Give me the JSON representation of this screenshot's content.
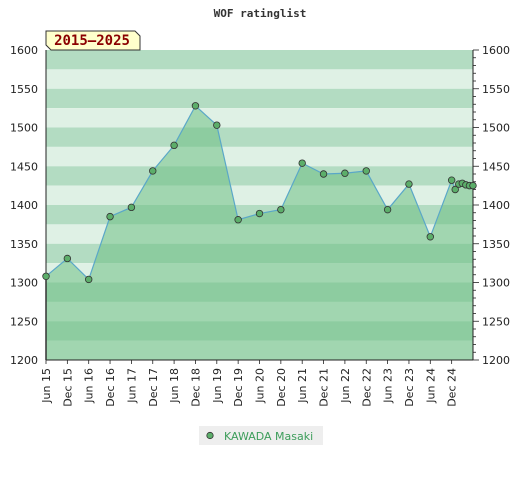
{
  "chart_data": {
    "type": "area",
    "title": "WOF ratinglist",
    "badge": "2015–2025",
    "ylim": [
      1200,
      1600
    ],
    "yticks": [
      1200,
      1250,
      1300,
      1350,
      1400,
      1450,
      1500,
      1550,
      1600
    ],
    "grid": true,
    "legend_position": "bottom-center",
    "colors": {
      "line": "#5aa7c8",
      "marker": "#5cae6a",
      "fill": "#6dbf85",
      "band_dark": "#b3dcc2",
      "band_light": "#dff1e5",
      "badge_bg": "#ffffcc"
    },
    "xtick_labels": [
      "Jun 15",
      "Dec 15",
      "Jun 16",
      "Dec 16",
      "Jun 17",
      "Dec 17",
      "Jun 18",
      "Dec 18",
      "Jun 19",
      "Dec 19",
      "Jun 20",
      "Dec 20",
      "Jun 21",
      "Dec 21",
      "Jun 22",
      "Dec 22",
      "Jun 23",
      "Dec 23",
      "Jun 24",
      "Dec 24"
    ],
    "series": [
      {
        "name": "KAWADA Masaki",
        "points": [
          {
            "x": "Jun 15",
            "y": 1308
          },
          {
            "x": "Dec 15",
            "y": 1331
          },
          {
            "x": "Jun 16",
            "y": 1304
          },
          {
            "x": "Dec 16",
            "y": 1385
          },
          {
            "x": "Jun 17",
            "y": 1397
          },
          {
            "x": "Dec 17",
            "y": 1444
          },
          {
            "x": "Jun 18",
            "y": 1477
          },
          {
            "x": "Dec 18",
            "y": 1528
          },
          {
            "x": "Jun 19",
            "y": 1503
          },
          {
            "x": "Dec 19",
            "y": 1381
          },
          {
            "x": "Jun 20",
            "y": 1389
          },
          {
            "x": "Dec 20",
            "y": 1394
          },
          {
            "x": "Jun 21",
            "y": 1454
          },
          {
            "x": "Dec 21",
            "y": 1440
          },
          {
            "x": "Jun 22",
            "y": 1441
          },
          {
            "x": "Dec 22",
            "y": 1444
          },
          {
            "x": "Jun 23",
            "y": 1394
          },
          {
            "x": "Dec 23",
            "y": 1427
          },
          {
            "x": "Jun 24",
            "y": 1359
          },
          {
            "x": "Dec 24",
            "y": 1432
          },
          {
            "x": "Jan 25",
            "y": 1420
          },
          {
            "x": "Feb 25",
            "y": 1427
          },
          {
            "x": "Mar 25",
            "y": 1428
          },
          {
            "x": "Apr 25",
            "y": 1426
          },
          {
            "x": "May 25",
            "y": 1425
          },
          {
            "x": "Jun 25",
            "y": 1425
          }
        ]
      }
    ]
  }
}
